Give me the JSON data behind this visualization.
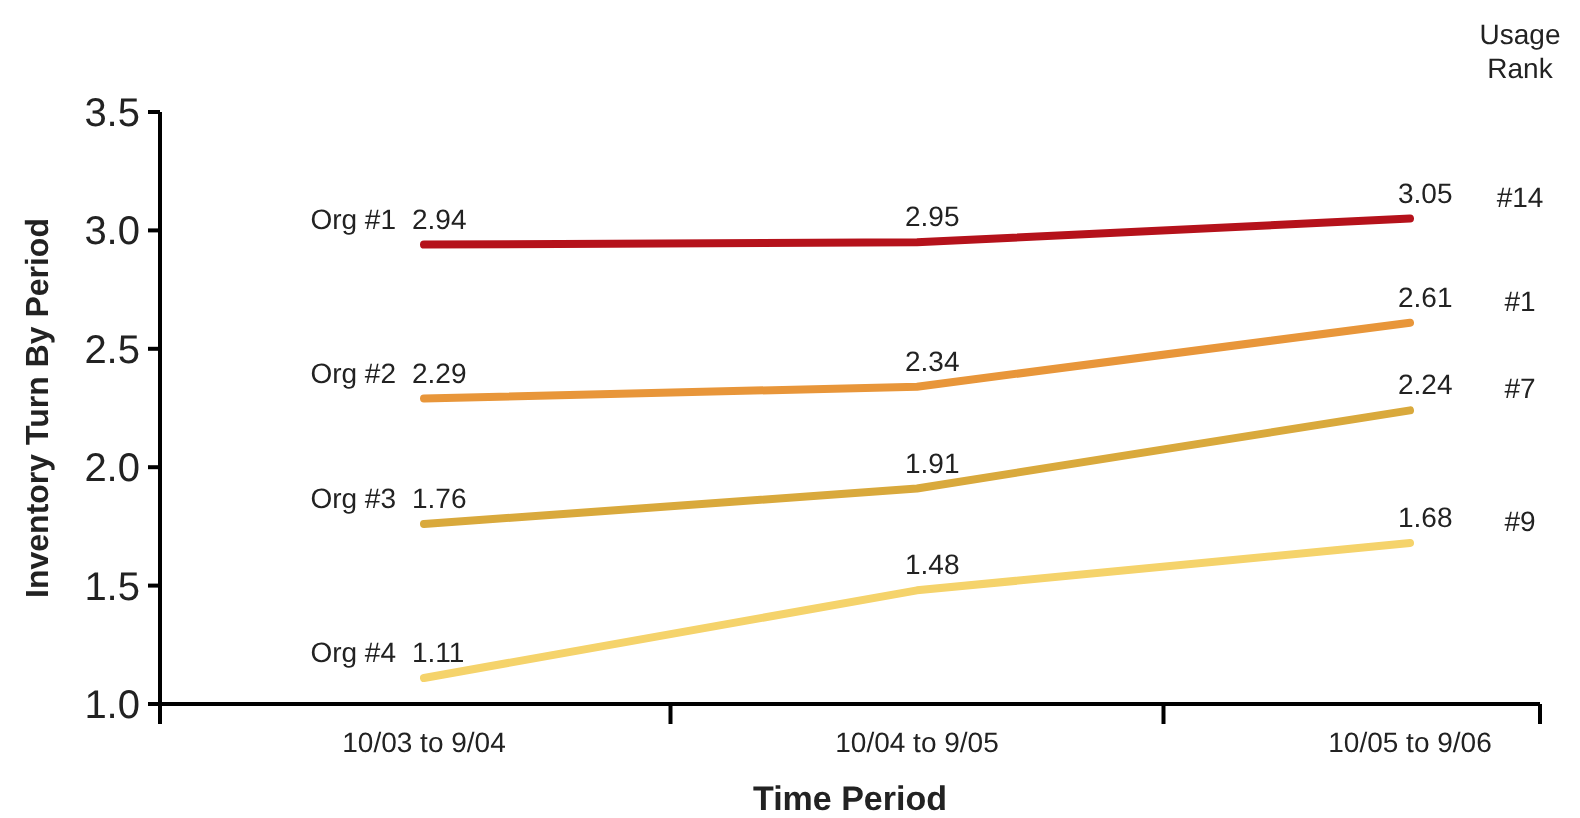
{
  "chart_data": {
    "type": "line",
    "xlabel": "Time Period",
    "ylabel": "Inventory Turn By Period",
    "categories": [
      "10/03 to 9/04",
      "10/04 to 9/05",
      "10/05 to 9/06"
    ],
    "series": [
      {
        "name": "Org #1",
        "color": "#b5121b",
        "values": [
          2.94,
          2.95,
          3.05
        ]
      },
      {
        "name": "Org #2",
        "color": "#e8963a",
        "values": [
          2.29,
          2.34,
          2.61
        ]
      },
      {
        "name": "Org #3",
        "color": "#d9a93c",
        "values": [
          1.76,
          1.91,
          2.24
        ]
      },
      {
        "name": "Org #4",
        "color": "#f5d36b",
        "values": [
          1.11,
          1.48,
          1.68
        ]
      }
    ],
    "ylim": [
      1.0,
      3.5
    ],
    "yticks": [
      {
        "value": 1,
        "label": "1.0"
      },
      {
        "value": 1.5,
        "label": "1.5"
      },
      {
        "value": 2,
        "label": "2.0"
      },
      {
        "value": 2.5,
        "label": "2.5"
      },
      {
        "value": 3,
        "label": "3.0"
      },
      {
        "value": 3.5,
        "label": "3.5"
      }
    ],
    "grid": false,
    "marker": "none",
    "line_style": "solid",
    "data_labels": true,
    "annotations": [
      "Usage Rank",
      "#14",
      "#1",
      "#7",
      "#9"
    ]
  }
}
